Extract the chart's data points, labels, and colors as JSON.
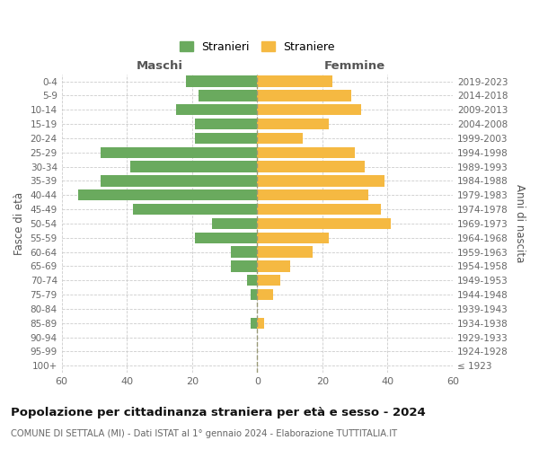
{
  "age_groups": [
    "100+",
    "95-99",
    "90-94",
    "85-89",
    "80-84",
    "75-79",
    "70-74",
    "65-69",
    "60-64",
    "55-59",
    "50-54",
    "45-49",
    "40-44",
    "35-39",
    "30-34",
    "25-29",
    "20-24",
    "15-19",
    "10-14",
    "5-9",
    "0-4"
  ],
  "birth_years": [
    "≤ 1923",
    "1924-1928",
    "1929-1933",
    "1934-1938",
    "1939-1943",
    "1944-1948",
    "1949-1953",
    "1954-1958",
    "1959-1963",
    "1964-1968",
    "1969-1973",
    "1974-1978",
    "1979-1983",
    "1984-1988",
    "1989-1993",
    "1994-1998",
    "1999-2003",
    "2004-2008",
    "2009-2013",
    "2014-2018",
    "2019-2023"
  ],
  "males": [
    0,
    0,
    0,
    2,
    0,
    2,
    3,
    8,
    8,
    19,
    14,
    38,
    55,
    48,
    39,
    48,
    19,
    19,
    25,
    18,
    22
  ],
  "females": [
    0,
    0,
    0,
    2,
    0,
    5,
    7,
    10,
    17,
    22,
    41,
    38,
    34,
    39,
    33,
    30,
    14,
    22,
    32,
    29,
    23
  ],
  "male_color": "#6aaa5e",
  "female_color": "#f5b942",
  "grid_color": "#cccccc",
  "title": "Popolazione per cittadinanza straniera per età e sesso - 2024",
  "subtitle": "COMUNE DI SETTALA (MI) - Dati ISTAT al 1° gennaio 2024 - Elaborazione TUTTITALIA.IT",
  "xlabel_left": "Maschi",
  "xlabel_right": "Femmine",
  "ylabel_left": "Fasce di età",
  "ylabel_right": "Anni di nascita",
  "legend_males": "Stranieri",
  "legend_females": "Straniere",
  "xlim": 60,
  "bar_height": 0.78
}
